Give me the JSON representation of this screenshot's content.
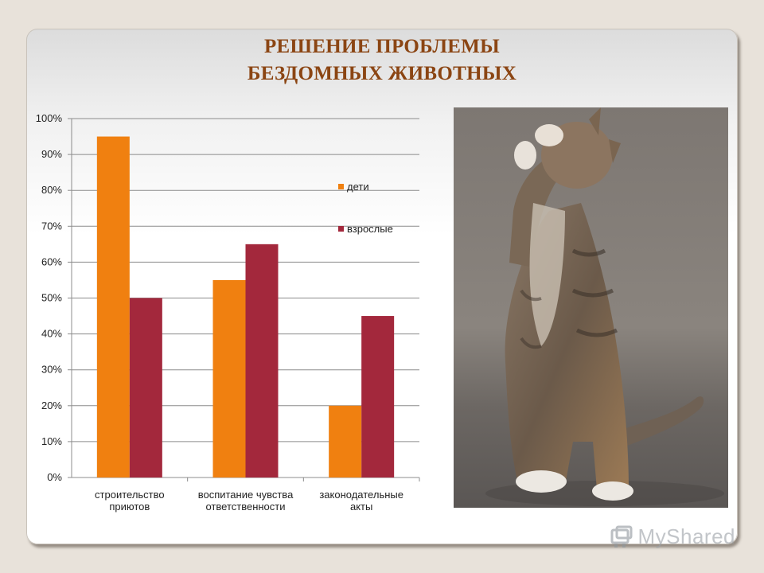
{
  "slide": {
    "title_line1": "РЕШЕНИЕ ПРОБЛЕМЫ",
    "title_line2": "БЕЗДОМНЫХ ЖИВОТНЫХ",
    "watermark": "MyShared"
  },
  "photo": {
    "icon": "cat-photo"
  },
  "chart_data": {
    "type": "bar",
    "title": "",
    "xlabel": "",
    "ylabel": "",
    "ylim": [
      0,
      100
    ],
    "yticks": [
      "0%",
      "10%",
      "20%",
      "30%",
      "40%",
      "50%",
      "60%",
      "70%",
      "80%",
      "90%",
      "100%"
    ],
    "categories": [
      [
        "строительство",
        "приютов"
      ],
      [
        "воспитание чувства",
        "ответственности"
      ],
      [
        "законодательные",
        "акты"
      ]
    ],
    "series": [
      {
        "name": "дети",
        "color": "#f08010",
        "values": [
          95,
          55,
          20
        ]
      },
      {
        "name": "взрослые",
        "color": "#a3283c",
        "values": [
          50,
          65,
          45
        ]
      }
    ],
    "grid": true,
    "legend_position": "right"
  }
}
